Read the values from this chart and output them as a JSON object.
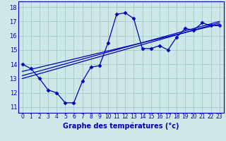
{
  "xlabel": "Graphe des températures (°c)",
  "bg_color": "#cce8e8",
  "grid_color": "#aacccc",
  "line_color": "#0000bb",
  "x_ticks": [
    0,
    1,
    2,
    3,
    4,
    5,
    6,
    7,
    8,
    9,
    10,
    11,
    12,
    13,
    14,
    15,
    16,
    17,
    18,
    19,
    20,
    21,
    22,
    23
  ],
  "y_ticks": [
    11,
    12,
    13,
    14,
    15,
    16,
    17,
    18
  ],
  "ylim": [
    10.6,
    18.4
  ],
  "xlim": [
    -0.5,
    23.5
  ],
  "hours": [
    0,
    1,
    2,
    3,
    4,
    5,
    6,
    7,
    8,
    9,
    10,
    11,
    12,
    13,
    14,
    15,
    16,
    17,
    18,
    19,
    20,
    21,
    22,
    23
  ],
  "temp": [
    14.0,
    13.7,
    13.0,
    12.2,
    12.0,
    11.3,
    11.3,
    12.8,
    13.8,
    13.9,
    15.5,
    17.5,
    17.6,
    17.2,
    15.1,
    15.1,
    15.3,
    15.0,
    15.9,
    16.5,
    16.4,
    16.9,
    16.7,
    16.7
  ],
  "line1_x": [
    0,
    23
  ],
  "line1_y": [
    13.2,
    17.0
  ],
  "line2_x": [
    0,
    23
  ],
  "line2_y": [
    13.5,
    16.8
  ],
  "line3_x": [
    0,
    23
  ],
  "line3_y": [
    13.0,
    16.9
  ],
  "xlabel_color": "#0000bb",
  "xlabel_fontsize": 7,
  "tick_fontsize": 5.5,
  "ytick_fontsize": 6
}
